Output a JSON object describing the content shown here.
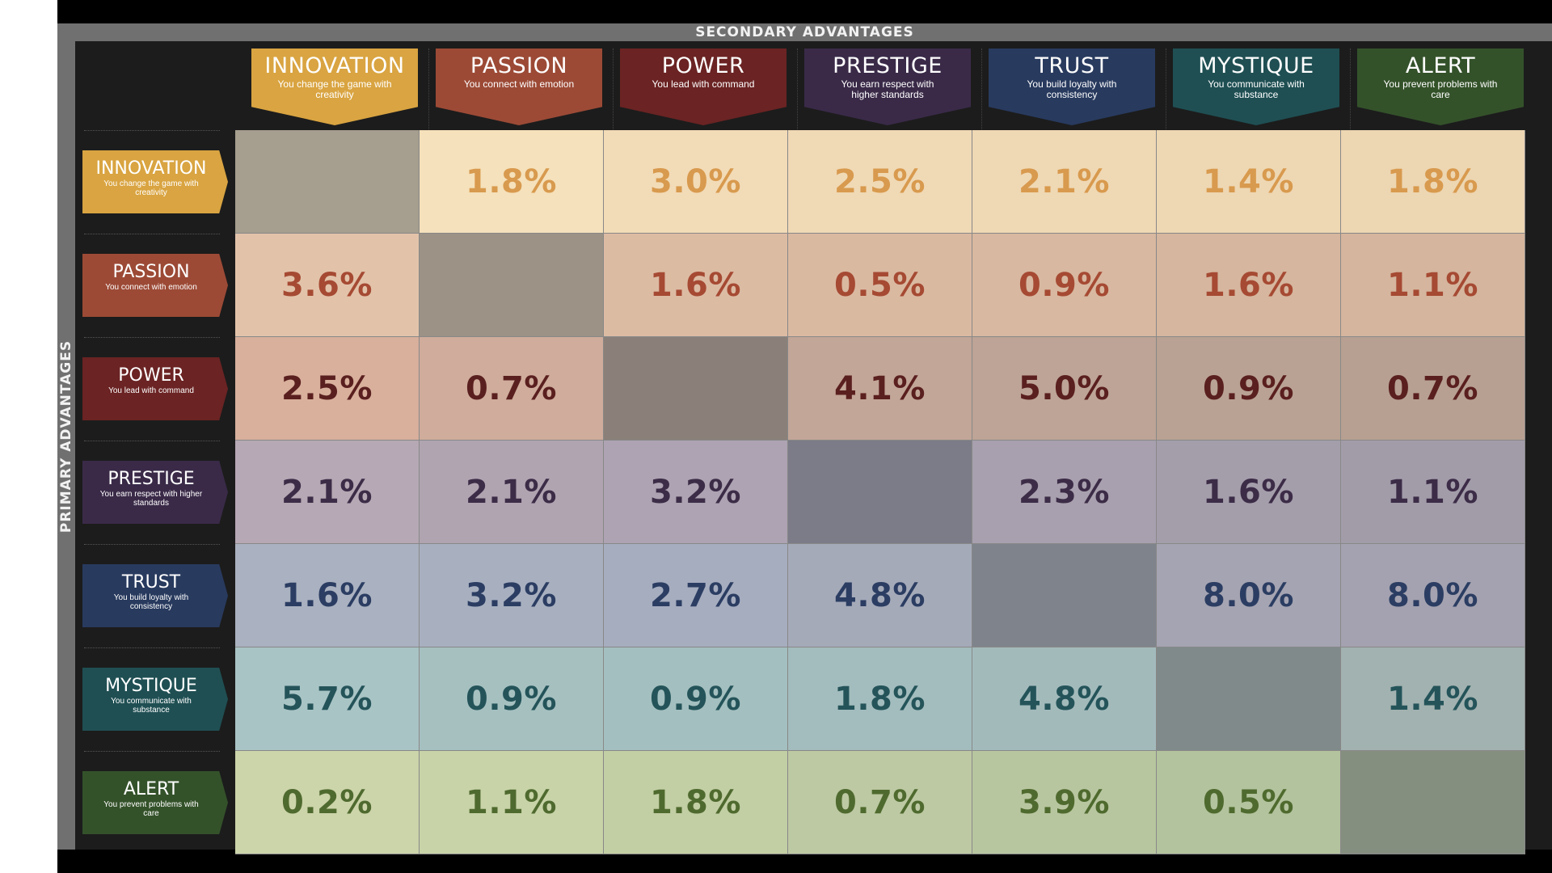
{
  "title_secondary": "SECONDARY ADVANTAGES",
  "title_primary": "PRIMARY ADVANTAGES",
  "advantages": [
    {
      "key": "innovation",
      "label": "INNOVATION",
      "sub": "You change the game with creativity",
      "color": "#d9a441"
    },
    {
      "key": "passion",
      "label": "PASSION",
      "sub": "You connect with emotion",
      "color": "#9c4a36"
    },
    {
      "key": "power",
      "label": "POWER",
      "sub": "You lead with command",
      "color": "#6b2323"
    },
    {
      "key": "prestige",
      "label": "PRESTIGE",
      "sub": "You earn respect with higher standards",
      "color": "#3a2a48"
    },
    {
      "key": "trust",
      "label": "TRUST",
      "sub": "You build loyalty with consistency",
      "color": "#283a5e"
    },
    {
      "key": "mystique",
      "label": "MYSTIQUE",
      "sub": "You communicate with substance",
      "color": "#1f4f53"
    },
    {
      "key": "alert",
      "label": "ALERT",
      "sub": "You prevent problems with care",
      "color": "#34522a"
    }
  ],
  "chart_data": {
    "type": "heatmap",
    "x_title": "SECONDARY ADVANTAGES",
    "y_title": "PRIMARY ADVANTAGES",
    "columns": [
      "INNOVATION",
      "PASSION",
      "POWER",
      "PRESTIGE",
      "TRUST",
      "MYSTIQUE",
      "ALERT"
    ],
    "rows": [
      "INNOVATION",
      "PASSION",
      "POWER",
      "PRESTIGE",
      "TRUST",
      "MYSTIQUE",
      "ALERT"
    ],
    "values": [
      [
        null,
        "1.8%",
        "3.0%",
        "2.5%",
        "2.1%",
        "1.4%",
        "1.8%"
      ],
      [
        "3.6%",
        null,
        "1.6%",
        "0.5%",
        "0.9%",
        "1.6%",
        "1.1%"
      ],
      [
        "2.5%",
        "0.7%",
        null,
        "4.1%",
        "5.0%",
        "0.9%",
        "0.7%"
      ],
      [
        "2.1%",
        "2.1%",
        "3.2%",
        null,
        "2.3%",
        "1.6%",
        "1.1%"
      ],
      [
        "1.6%",
        "3.2%",
        "2.7%",
        "4.8%",
        null,
        "8.0%",
        "8.0%"
      ],
      [
        "5.7%",
        "0.9%",
        "0.9%",
        "1.8%",
        "4.8%",
        null,
        "1.4%"
      ],
      [
        "0.2%",
        "1.1%",
        "1.8%",
        "0.7%",
        "3.9%",
        "0.5%",
        null
      ]
    ],
    "row_styles": [
      {
        "bg": [
          "#a69e8e",
          "#f5e1bb",
          "#f2dbb7",
          "#f0d9b5",
          "#efd8b4",
          "#eed7b3",
          "#edd6b2"
        ],
        "text": "#d89a4e"
      },
      {
        "bg": [
          "#e2c3aa",
          "#9c9286",
          "#dcbba3",
          "#dab9a1",
          "#d8b8a0",
          "#d6b69e",
          "#d5b59d"
        ],
        "text": "#a64a33"
      },
      {
        "bg": [
          "#d8b09c",
          "#cfac9b",
          "#8a8079",
          "#c2a697",
          "#bda496",
          "#b9a293",
          "#b7a092"
        ],
        "text": "#5a1f1f"
      },
      {
        "bg": [
          "#b6a8b4",
          "#b1a4b1",
          "#ada3b2",
          "#7c7c88",
          "#a8a0ae",
          "#a49eab",
          "#a29ca9"
        ],
        "text": "#3c2c47"
      },
      {
        "bg": [
          "#aab1c0",
          "#a8b0c0",
          "#a6adbf",
          "#a5aab9",
          "#7f848c",
          "#a5a4b2",
          "#a4a2b0"
        ],
        "text": "#2b3d62"
      },
      {
        "bg": [
          "#a9c4c5",
          "#a6c0c0",
          "#a4bfbf",
          "#a3bcbd",
          "#a3babb",
          "#808a8a",
          "#a2b2b0"
        ],
        "text": "#24545a"
      },
      {
        "bg": [
          "#ccd4aa",
          "#c8d3a8",
          "#c2cea4",
          "#bdc9a3",
          "#b8c6a0",
          "#b3c39e",
          "#858f80"
        ],
        "text": "#4f6a2e"
      }
    ]
  }
}
